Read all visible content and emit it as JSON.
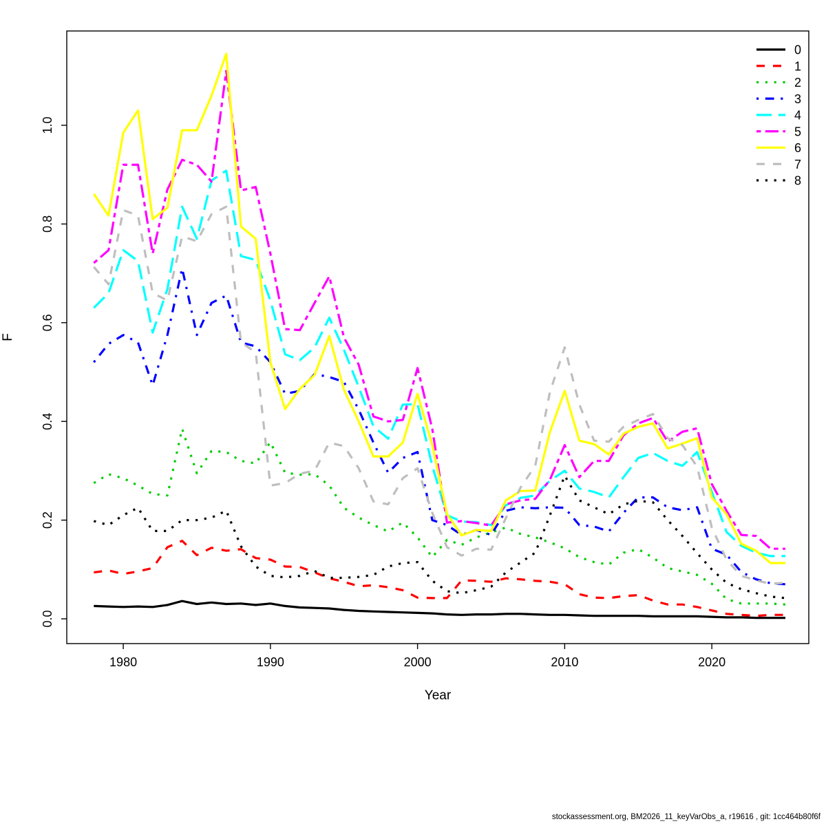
{
  "figure": {
    "xlabel": "Year",
    "ylabel": "F",
    "footer": "stockassessment.org, BM2026_11_keyVarObs_a, r19616 , git: 1cc464b80f6f"
  },
  "chart_data": {
    "type": "line",
    "title": "",
    "xlabel": "Year",
    "ylabel": "F",
    "grid": false,
    "legend_position": "top-right",
    "xlim": [
      1976.16,
      2026.59
    ],
    "ylim": [
      -0.0502,
      1.1911
    ],
    "x_ticks": [
      1980,
      1990,
      2000,
      2010,
      2020
    ],
    "x_tick_labels": [
      "1980",
      "1990",
      "2000",
      "2010",
      "2020"
    ],
    "y_ticks": [
      0.0,
      0.2,
      0.4,
      0.6,
      0.8,
      1.0
    ],
    "y_tick_labels": [
      "0.0",
      "0.2",
      "0.4",
      "0.6",
      "0.8",
      "1.0"
    ],
    "x": [
      1978,
      1979,
      1980,
      1981,
      1982,
      1983,
      1984,
      1985,
      1986,
      1987,
      1988,
      1989,
      1990,
      1991,
      1992,
      1993,
      1994,
      1995,
      1996,
      1997,
      1998,
      1999,
      2000,
      2001,
      2002,
      2003,
      2004,
      2005,
      2006,
      2007,
      2008,
      2009,
      2010,
      2011,
      2012,
      2013,
      2014,
      2015,
      2016,
      2017,
      2018,
      2019,
      2020,
      2021,
      2022,
      2023,
      2024,
      2025
    ],
    "series": [
      {
        "name": "0",
        "color": "#000000",
        "linestyle": "solid",
        "values": [
          0.026,
          0.025,
          0.024,
          0.025,
          0.024,
          0.028,
          0.036,
          0.03,
          0.033,
          0.03,
          0.031,
          0.028,
          0.031,
          0.026,
          0.023,
          0.022,
          0.021,
          0.018,
          0.016,
          0.015,
          0.014,
          0.013,
          0.012,
          0.011,
          0.009,
          0.008,
          0.009,
          0.009,
          0.01,
          0.01,
          0.009,
          0.008,
          0.008,
          0.007,
          0.006,
          0.006,
          0.006,
          0.006,
          0.005,
          0.005,
          0.005,
          0.005,
          0.004,
          0.003,
          0.003,
          0.002,
          0.002,
          0.002
        ]
      },
      {
        "name": "1",
        "color": "#FF0000",
        "linestyle": "dashed",
        "values": [
          0.094,
          0.098,
          0.091,
          0.096,
          0.103,
          0.145,
          0.158,
          0.129,
          0.144,
          0.138,
          0.141,
          0.123,
          0.12,
          0.106,
          0.105,
          0.094,
          0.082,
          0.075,
          0.066,
          0.068,
          0.064,
          0.058,
          0.043,
          0.042,
          0.042,
          0.078,
          0.077,
          0.075,
          0.082,
          0.08,
          0.077,
          0.075,
          0.07,
          0.05,
          0.043,
          0.042,
          0.046,
          0.048,
          0.037,
          0.029,
          0.029,
          0.024,
          0.017,
          0.01,
          0.008,
          0.006,
          0.008,
          0.008
        ]
      },
      {
        "name": "2",
        "color": "#00CD00",
        "linestyle": "dotted",
        "values": [
          0.275,
          0.293,
          0.285,
          0.27,
          0.253,
          0.25,
          0.385,
          0.295,
          0.34,
          0.338,
          0.32,
          0.315,
          0.358,
          0.296,
          0.292,
          0.293,
          0.27,
          0.225,
          0.205,
          0.19,
          0.177,
          0.195,
          0.165,
          0.125,
          0.16,
          0.15,
          0.165,
          0.175,
          0.185,
          0.172,
          0.165,
          0.155,
          0.143,
          0.125,
          0.115,
          0.11,
          0.134,
          0.141,
          0.124,
          0.103,
          0.096,
          0.089,
          0.071,
          0.04,
          0.031,
          0.031,
          0.031,
          0.029
        ]
      },
      {
        "name": "3",
        "color": "#0000FF",
        "linestyle": "dotdash",
        "values": [
          0.52,
          0.557,
          0.575,
          0.56,
          0.473,
          0.575,
          0.71,
          0.575,
          0.64,
          0.655,
          0.56,
          0.552,
          0.52,
          0.456,
          0.462,
          0.496,
          0.49,
          0.48,
          0.424,
          0.357,
          0.296,
          0.326,
          0.338,
          0.2,
          0.19,
          0.17,
          0.18,
          0.17,
          0.219,
          0.226,
          0.224,
          0.226,
          0.225,
          0.19,
          0.187,
          0.177,
          0.215,
          0.246,
          0.246,
          0.226,
          0.22,
          0.226,
          0.142,
          0.13,
          0.095,
          0.08,
          0.072,
          0.07
        ]
      },
      {
        "name": "4",
        "color": "#00FFFF",
        "linestyle": "longdash",
        "values": [
          0.63,
          0.66,
          0.747,
          0.725,
          0.58,
          0.668,
          0.835,
          0.77,
          0.888,
          0.908,
          0.735,
          0.727,
          0.645,
          0.536,
          0.524,
          0.55,
          0.61,
          0.545,
          0.47,
          0.39,
          0.365,
          0.434,
          0.435,
          0.31,
          0.21,
          0.197,
          0.196,
          0.19,
          0.23,
          0.245,
          0.25,
          0.28,
          0.3,
          0.264,
          0.257,
          0.246,
          0.287,
          0.326,
          0.336,
          0.32,
          0.31,
          0.338,
          0.257,
          0.176,
          0.148,
          0.134,
          0.127,
          0.127
        ]
      },
      {
        "name": "5",
        "color": "#FF00FF",
        "linestyle": "twodash",
        "values": [
          0.721,
          0.747,
          0.92,
          0.92,
          0.74,
          0.87,
          0.93,
          0.92,
          0.886,
          1.11,
          0.868,
          0.875,
          0.74,
          0.587,
          0.585,
          0.64,
          0.694,
          0.57,
          0.515,
          0.41,
          0.4,
          0.403,
          0.508,
          0.385,
          0.195,
          0.198,
          0.194,
          0.189,
          0.232,
          0.24,
          0.243,
          0.282,
          0.352,
          0.287,
          0.32,
          0.32,
          0.372,
          0.396,
          0.407,
          0.359,
          0.379,
          0.386,
          0.273,
          0.219,
          0.17,
          0.168,
          0.142,
          0.142
        ]
      },
      {
        "name": "6",
        "color": "#FFFF00",
        "linestyle": "solid",
        "values": [
          0.861,
          0.817,
          0.985,
          1.03,
          0.81,
          0.833,
          0.99,
          0.99,
          1.06,
          1.145,
          0.795,
          0.77,
          0.52,
          0.425,
          0.466,
          0.494,
          0.573,
          0.464,
          0.4,
          0.329,
          0.329,
          0.357,
          0.456,
          0.352,
          0.212,
          0.169,
          0.18,
          0.178,
          0.24,
          0.259,
          0.26,
          0.379,
          0.462,
          0.361,
          0.354,
          0.333,
          0.375,
          0.389,
          0.396,
          0.345,
          0.355,
          0.366,
          0.246,
          0.212,
          0.152,
          0.138,
          0.113,
          0.113
        ]
      },
      {
        "name": "7",
        "color": "#BEBEBE",
        "linestyle": "dashed",
        "values": [
          0.713,
          0.678,
          0.828,
          0.817,
          0.66,
          0.645,
          0.775,
          0.765,
          0.82,
          0.835,
          0.56,
          0.54,
          0.27,
          0.275,
          0.294,
          0.3,
          0.357,
          0.35,
          0.305,
          0.238,
          0.232,
          0.285,
          0.305,
          0.215,
          0.145,
          0.128,
          0.142,
          0.14,
          0.204,
          0.266,
          0.31,
          0.46,
          0.55,
          0.434,
          0.361,
          0.359,
          0.389,
          0.403,
          0.415,
          0.366,
          0.352,
          0.308,
          0.185,
          0.12,
          0.087,
          0.078,
          0.071,
          0.073
        ]
      },
      {
        "name": "8",
        "color": "#000000",
        "linestyle": "dotted",
        "values": [
          0.198,
          0.19,
          0.21,
          0.225,
          0.178,
          0.178,
          0.2,
          0.2,
          0.205,
          0.219,
          0.147,
          0.106,
          0.087,
          0.084,
          0.087,
          0.097,
          0.083,
          0.083,
          0.085,
          0.089,
          0.106,
          0.113,
          0.115,
          0.077,
          0.056,
          0.052,
          0.058,
          0.065,
          0.094,
          0.114,
          0.134,
          0.21,
          0.29,
          0.24,
          0.226,
          0.212,
          0.232,
          0.239,
          0.236,
          0.2,
          0.168,
          0.133,
          0.1,
          0.073,
          0.06,
          0.052,
          0.045,
          0.042
        ]
      }
    ]
  }
}
